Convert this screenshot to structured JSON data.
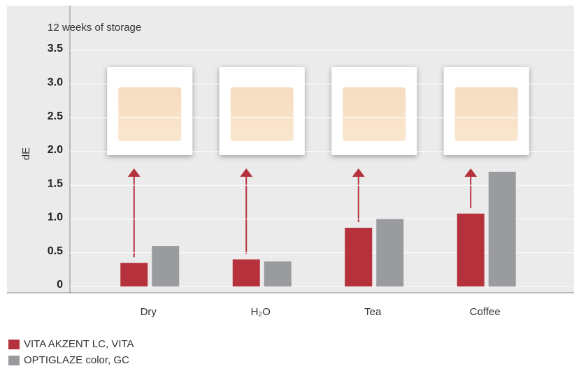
{
  "chart_data": {
    "type": "bar",
    "subtitle": "12 weeks of storage",
    "y_label": "dE",
    "categories": [
      "Dry",
      "H₂O",
      "Tea",
      "Coffee"
    ],
    "series": [
      {
        "name": "VITA AKZENT LC, VITA",
        "color": "#b5323c",
        "values": [
          0.35,
          0.4,
          0.87,
          1.08
        ]
      },
      {
        "name": "OPTIGLAZE color, GC",
        "color": "#9a9b9e",
        "values": [
          0.6,
          0.37,
          1.0,
          1.7
        ]
      }
    ],
    "ylim": [
      0,
      3.5
    ],
    "yticks": [
      {
        "value": 0,
        "label": "0"
      },
      0.5,
      {
        "value": 1,
        "label": "1.0"
      },
      1.5,
      {
        "value": 2,
        "label": "2.0"
      },
      2.5,
      {
        "value": 3,
        "label": "3.0"
      },
      3.5
    ],
    "grid": true
  }
}
